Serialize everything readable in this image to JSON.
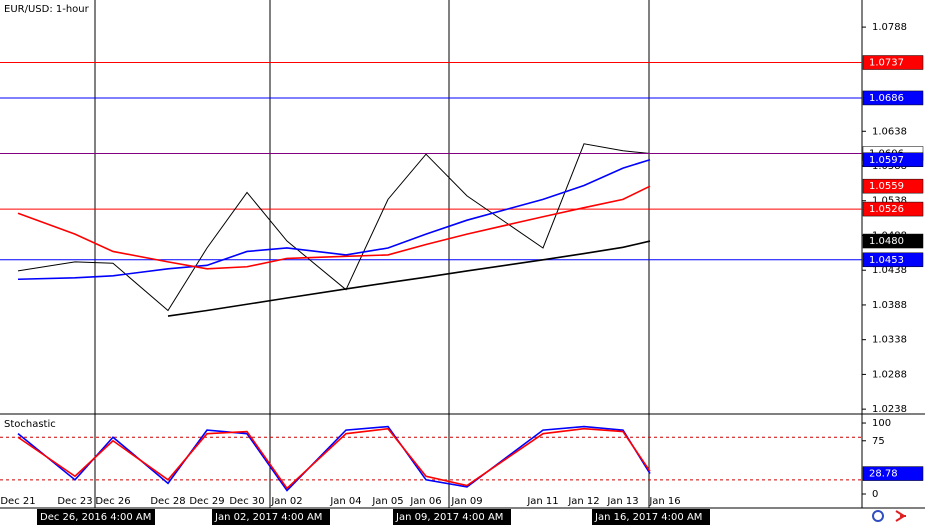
{
  "chart_data": [
    {
      "type": "line",
      "title": "EUR/USD: 1-hour",
      "series": [
        {
          "color": "#000000",
          "last_line_color": "#800080",
          "values": [
            1.0437,
            1.045,
            1.0448,
            1.038,
            1.047,
            1.055,
            1.048,
            1.041,
            1.054,
            1.0605,
            1.0545,
            1.047,
            1.062,
            1.061,
            1.0606
          ]
        },
        {
          "color": "#0000ff",
          "values": [
            1.0425,
            1.0427,
            1.043,
            1.044,
            1.0445,
            1.0465,
            1.047,
            1.046,
            1.047,
            1.049,
            1.051,
            1.054,
            1.056,
            1.0585,
            1.0597
          ]
        },
        {
          "color": "#ff0000",
          "values": [
            1.052,
            1.049,
            1.0465,
            1.045,
            1.044,
            1.0443,
            1.0455,
            1.0458,
            1.046,
            1.0475,
            1.049,
            1.0515,
            1.0528,
            1.054,
            1.0559
          ]
        },
        {
          "color": "#000000",
          "values": [
            null,
            null,
            null,
            1.0372,
            1.038,
            1.0389,
            1.0398,
            1.0411,
            1.042,
            1.0428,
            1.0437,
            1.0453,
            1.0462,
            1.0471,
            1.048
          ],
          "value_labels": [
            null,
            null,
            null,
            null,
            null,
            null,
            null,
            null,
            null,
            null,
            null,
            null,
            null,
            null,
            "1.0480"
          ]
        }
      ],
      "levels": [
        {
          "value": 1.0737,
          "color": "#ff0000"
        },
        {
          "value": 1.0686,
          "color": "#0000ff"
        },
        {
          "value": 1.0526,
          "color": "#ff0000"
        },
        {
          "value": 1.0453,
          "color": "#0000ff"
        }
      ],
      "ylim": [
        1.0231,
        1.0827
      ],
      "yticks": [
        1.0788,
        1.0638,
        1.0588,
        1.0538,
        1.0488,
        1.0438,
        1.0388,
        1.0338,
        1.0288,
        1.0238
      ]
    },
    {
      "type": "line",
      "title": "Stochastic",
      "categories": [
        "Dec 21",
        "Dec 23",
        "Dec 26",
        "Dec 28",
        "Dec 29",
        "Dec 30",
        "Jan 02",
        "Jan 04",
        "Jan 05",
        "Jan 06",
        "Jan 09",
        "Jan 11",
        "Jan 12",
        "Jan 13",
        "Jan 16"
      ],
      "series": [
        {
          "color": "#0000ff",
          "values": [
            85,
            20,
            80,
            15,
            90,
            85,
            5,
            90,
            95,
            20,
            10,
            90,
            95,
            90,
            28.78
          ]
        },
        {
          "color": "#ff0000",
          "values": [
            80,
            25,
            75,
            20,
            85,
            88,
            8,
            85,
            92,
            25,
            12,
            85,
            92,
            88,
            32
          ]
        }
      ],
      "levels": [
        80,
        20
      ],
      "ylim": [
        -19.7,
        109.9
      ],
      "yticks": [
        0,
        75,
        100
      ],
      "time_labels": [
        "Dec 26, 2016 4:00 AM",
        "Jan 02, 2017 4:00 AM",
        "Jan 09, 2017 4:00 AM",
        "Jan 16, 2017 4:00 AM"
      ]
    }
  ]
}
